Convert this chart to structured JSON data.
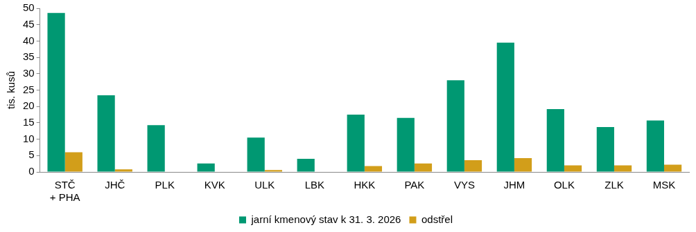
{
  "chart_data": {
    "type": "bar",
    "ylabel": "tis. kusů",
    "categories": [
      "STČ\n+ PHA",
      "JHČ",
      "PLK",
      "KVK",
      "ULK",
      "LBK",
      "HKK",
      "PAK",
      "VYS",
      "JHM",
      "OLK",
      "ZLK",
      "MSK"
    ],
    "series": [
      {
        "name": "jarní kmenový stav k 31. 3. 2026",
        "color": "#009872",
        "values": [
          48.6,
          23.4,
          14.3,
          2.6,
          10.5,
          4.0,
          17.5,
          16.5,
          28.0,
          39.5,
          19.2,
          13.7,
          15.7
        ]
      },
      {
        "name": "odstřel",
        "color": "#d29e1a",
        "values": [
          6.0,
          0.8,
          0,
          0,
          0.6,
          0,
          1.8,
          2.6,
          3.6,
          4.2,
          2.0,
          2.0,
          2.2
        ]
      }
    ],
    "ylim": [
      0,
      50
    ],
    "yticks": [
      0,
      5,
      10,
      15,
      20,
      25,
      30,
      35,
      40,
      45,
      50
    ],
    "grid": false,
    "legend": "bottom"
  }
}
